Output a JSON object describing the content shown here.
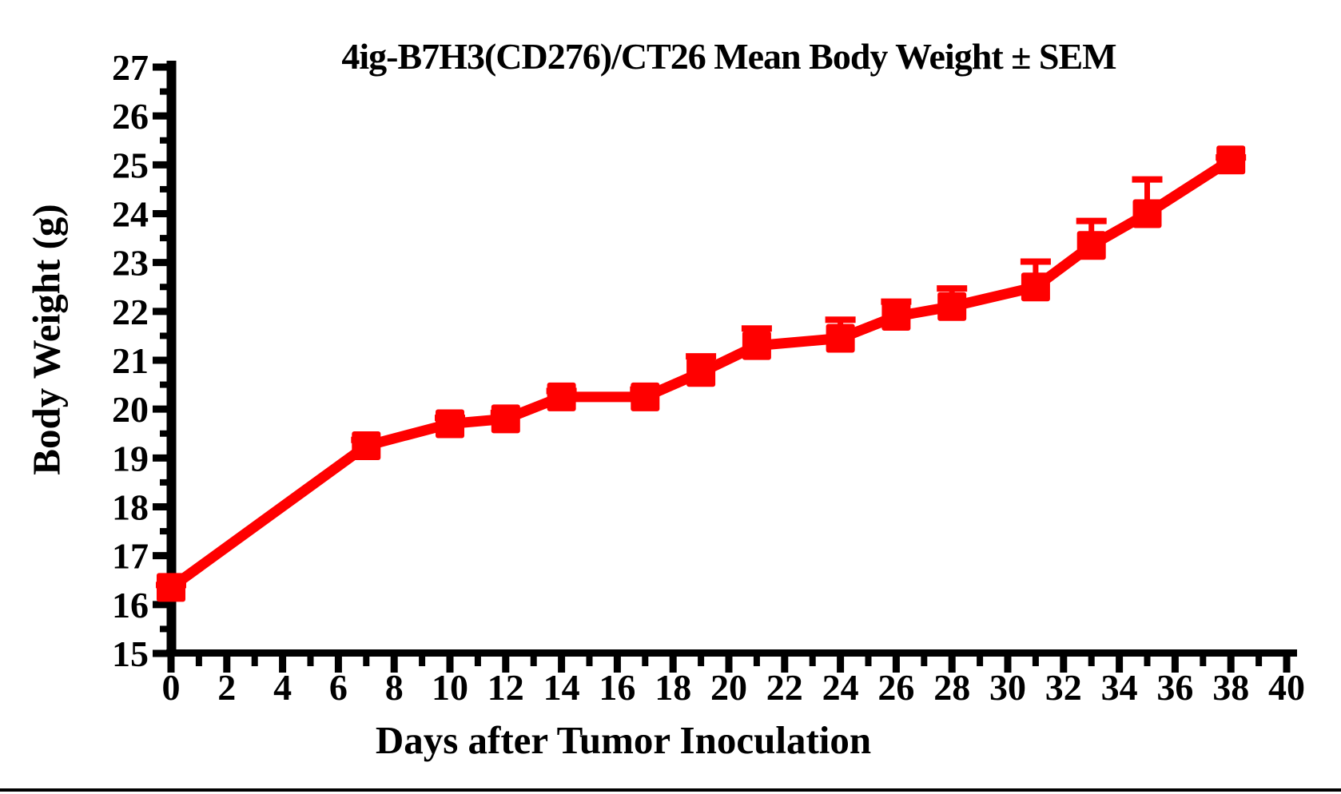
{
  "colors": {
    "series": "#FF0000",
    "axis": "#000000",
    "background": "#FFFFFF",
    "text": "#000000"
  },
  "chart_data": {
    "type": "line",
    "title": "4ig-B7H3(CD276)/CT26 Mean Body Weight ± SEM",
    "xlabel": "Days after Tumor Inoculation",
    "ylabel": "Body Weight (g)",
    "xlim": [
      0,
      40
    ],
    "ylim": [
      15,
      27
    ],
    "grid": false,
    "legend": "none",
    "x_tick_labels": [
      "0",
      "2",
      "4",
      "6",
      "8",
      "10",
      "12",
      "14",
      "16",
      "18",
      "20",
      "22",
      "24",
      "26",
      "28",
      "30",
      "32",
      "34",
      "36",
      "38",
      "40"
    ],
    "y_tick_labels": [
      "15",
      "16",
      "17",
      "18",
      "19",
      "20",
      "21",
      "22",
      "23",
      "24",
      "25",
      "26",
      "27"
    ],
    "x_minor_tick_interval": 1,
    "y_minor_tick_interval": 0.5,
    "series": [
      {
        "name": "4ig-B7H3(CD276)/CT26 mean body weight",
        "color": "#FF0000",
        "marker": "filled-square",
        "error_bar": "SEM, upper whisker only",
        "x": [
          0,
          7,
          10,
          12,
          14,
          17,
          19,
          21,
          24,
          26,
          28,
          31,
          33,
          35,
          38
        ],
        "y": [
          16.35,
          19.25,
          19.7,
          19.8,
          20.25,
          20.25,
          20.75,
          21.3,
          21.45,
          21.9,
          22.1,
          22.5,
          23.35,
          24.0,
          25.1
        ],
        "sem": [
          0.05,
          0.12,
          0.12,
          0.12,
          0.12,
          0.15,
          0.33,
          0.35,
          0.38,
          0.3,
          0.37,
          0.52,
          0.5,
          0.7,
          0.05
        ]
      }
    ]
  }
}
